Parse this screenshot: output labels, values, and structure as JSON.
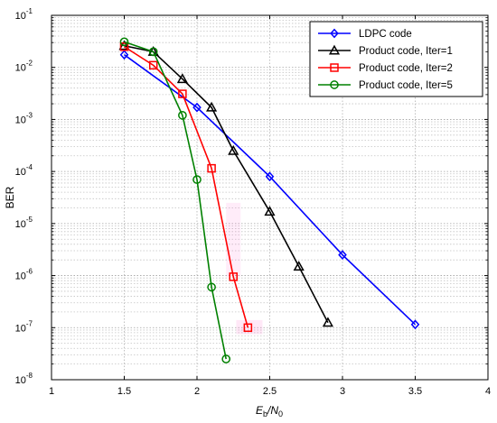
{
  "chart_data": {
    "type": "line",
    "xlabel_base": "E",
    "xlabel_sub_b": "b",
    "xlabel_mid": "/N",
    "xlabel_sub_0": "0",
    "ylabel": "BER",
    "xlim": [
      1,
      4
    ],
    "ylim_log10": [
      -8,
      -1
    ],
    "y_scale": "log",
    "grid": true,
    "legend_position": "top-right",
    "x_ticks": [
      "1",
      "1.5",
      "2",
      "2.5",
      "3",
      "3.5",
      "4"
    ],
    "y_tick_exponents": [
      "-1",
      "-2",
      "-3",
      "-4",
      "-5",
      "-6",
      "-7",
      "-8"
    ],
    "y_tick_base": "10",
    "series": [
      {
        "name": "LDPC code",
        "color": "#0000ff",
        "marker": "diamond",
        "x": [
          1.5,
          2.0,
          2.5,
          3.0,
          3.5
        ],
        "y": [
          0.0175,
          0.0017,
          8e-05,
          2.5e-06,
          1.15e-07
        ]
      },
      {
        "name": "Product code, Iter=1",
        "color": "#000000",
        "marker": "triangle",
        "x": [
          1.5,
          1.7,
          1.9,
          2.1,
          2.25,
          2.5,
          2.7,
          2.9
        ],
        "y": [
          0.026,
          0.02,
          0.006,
          0.0017,
          0.00025,
          1.7e-05,
          1.5e-06,
          1.25e-07
        ]
      },
      {
        "name": "Product code, Iter=2",
        "color": "#ff0000",
        "marker": "square",
        "x": [
          1.5,
          1.7,
          1.9,
          2.1,
          2.25,
          2.35
        ],
        "y": [
          0.025,
          0.011,
          0.0031,
          0.000115,
          9.5e-07,
          1e-07
        ]
      },
      {
        "name": "Product code, Iter=5",
        "color": "#008000",
        "marker": "circle",
        "x": [
          1.5,
          1.7,
          1.9,
          2.0,
          2.1,
          2.2
        ],
        "y": [
          0.031,
          0.02,
          0.0012,
          7e-05,
          6e-07,
          2.5e-08
        ]
      }
    ]
  }
}
